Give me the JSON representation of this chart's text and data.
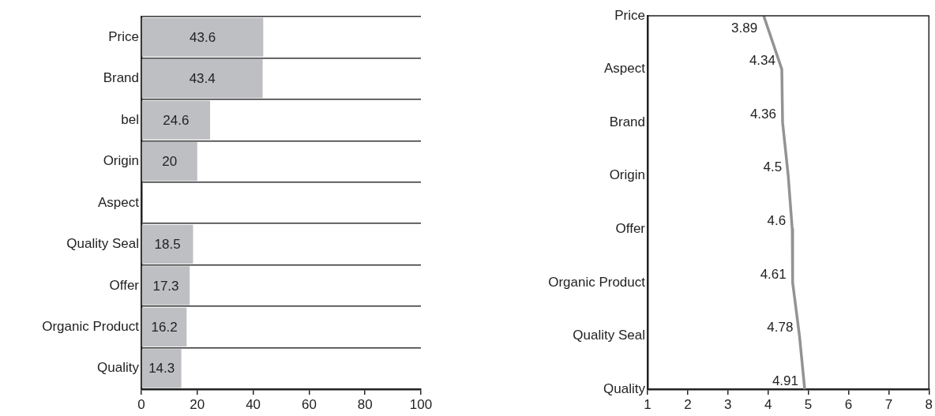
{
  "chart_data": [
    {
      "type": "bar",
      "orientation": "horizontal",
      "categories": [
        "Price",
        "Brand",
        "bel",
        "Origin",
        "Aspect",
        "Quality Seal",
        "Offer",
        "Organic Product",
        "Quality"
      ],
      "values": [
        43.6,
        43.4,
        24.6,
        20,
        null,
        18.5,
        17.3,
        16.2,
        14.3
      ],
      "color": "#bebfc3",
      "xlim": [
        0,
        100
      ],
      "xticks": [
        0,
        20,
        40,
        60,
        80,
        100
      ],
      "grid": "y",
      "data_labels": true
    },
    {
      "type": "line",
      "orientation": "horizontal",
      "categories": [
        "Price",
        "Aspect",
        "Brand",
        "Origin",
        "Offer",
        "Organic Product",
        "Quality Seal",
        "Quality"
      ],
      "values": [
        3.89,
        4.34,
        4.36,
        4.5,
        4.6,
        4.61,
        4.78,
        4.91
      ],
      "color": "#939393",
      "xlim": [
        1,
        8
      ],
      "xticks": [
        1,
        2,
        3,
        4,
        5,
        6,
        7,
        8
      ],
      "data_labels": true
    }
  ]
}
